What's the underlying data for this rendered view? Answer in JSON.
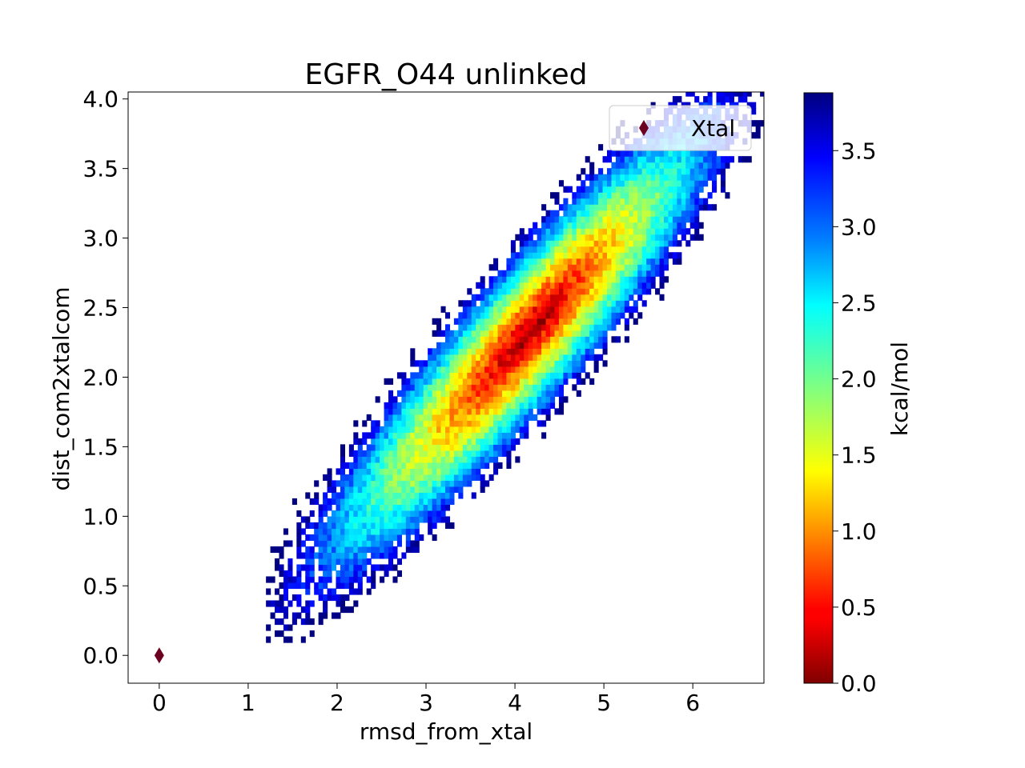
{
  "chart_data": {
    "type": "heatmap",
    "title": "EGFR_O44 unlinked",
    "xlabel": "rmsd_from_xtal",
    "ylabel": "dist_com2xtalcom",
    "xlim": [
      -0.35,
      6.8
    ],
    "ylim": [
      -0.2,
      4.05
    ],
    "x_ticks": [
      0,
      1,
      2,
      3,
      4,
      5,
      6
    ],
    "y_ticks": [
      0.0,
      0.5,
      1.0,
      1.5,
      2.0,
      2.5,
      3.0,
      3.5,
      4.0
    ],
    "colorbar": {
      "label": "kcal/mol",
      "range": [
        0.0,
        3.88
      ],
      "ticks": [
        0.0,
        0.5,
        1.0,
        1.5,
        2.0,
        2.5,
        3.0,
        3.5
      ],
      "colormap": "jet_r"
    },
    "distribution": {
      "minimum_at": [
        4.2,
        2.35
      ],
      "principal_axis_slope": 0.71,
      "x_range_populated": [
        1.4,
        6.9
      ],
      "y_range_populated": [
        0.2,
        4.0
      ]
    },
    "markers": [
      {
        "name": "Xtal",
        "x": 0.0,
        "y": 0.0,
        "shape": "diamond",
        "color": "#6b0020"
      }
    ],
    "legend": {
      "placement": "top-right",
      "entries": [
        "Xtal"
      ]
    },
    "grid": false
  }
}
